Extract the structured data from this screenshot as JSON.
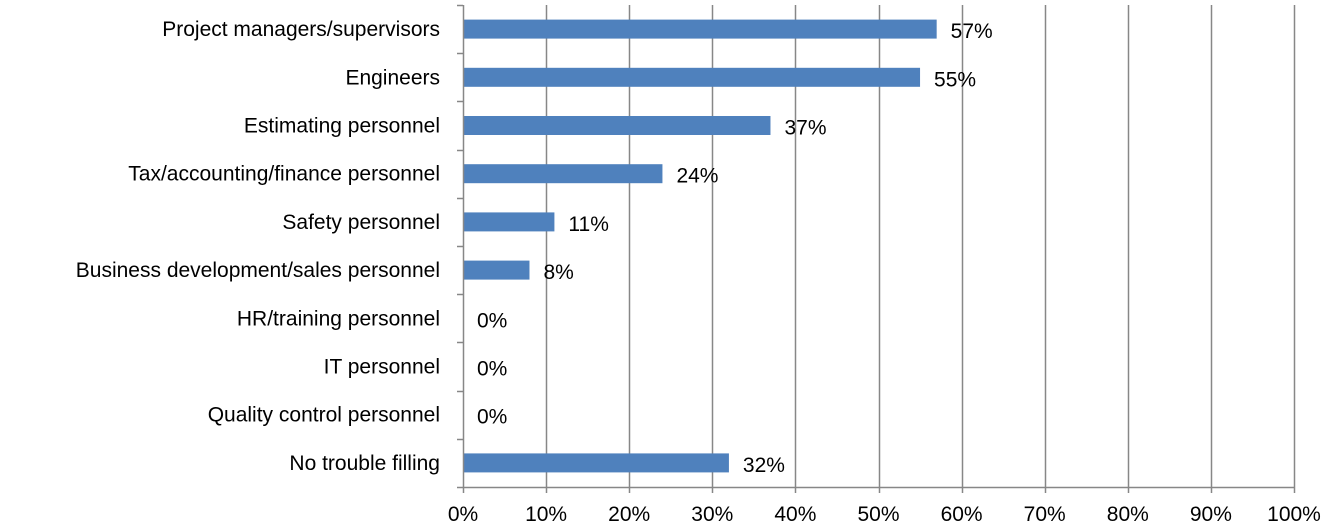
{
  "chart_data": {
    "type": "bar",
    "orientation": "horizontal",
    "categories": [
      "Project managers/supervisors",
      "Engineers",
      "Estimating personnel",
      "Tax/accounting/finance personnel",
      "Safety personnel",
      "Business development/sales personnel",
      "HR/training personnel",
      "IT personnel",
      "Quality control personnel",
      "No trouble filling"
    ],
    "values": [
      57,
      55,
      37,
      24,
      11,
      8,
      0,
      0,
      0,
      32
    ],
    "data_labels": [
      "57%",
      "55%",
      "37%",
      "24%",
      "11%",
      "8%",
      "0%",
      "0%",
      "0%",
      "32%"
    ],
    "xlim": [
      0,
      100
    ],
    "x_ticks": [
      0,
      10,
      20,
      30,
      40,
      50,
      60,
      70,
      80,
      90,
      100
    ],
    "x_tick_labels": [
      "0%",
      "10%",
      "20%",
      "30%",
      "40%",
      "50%",
      "60%",
      "70%",
      "80%",
      "90%",
      "100%"
    ],
    "grid": "vertical",
    "legend": "none",
    "colors": {
      "bar": "#4F81BD",
      "grid": "#878787",
      "axis": "#878787"
    }
  }
}
